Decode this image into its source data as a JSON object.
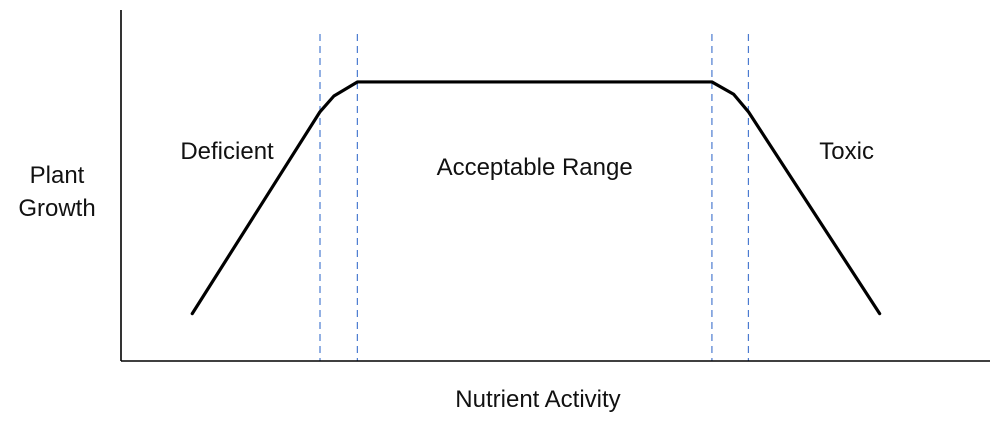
{
  "chart_data": {
    "type": "line",
    "title": "",
    "xlabel": "Nutrient Activity",
    "ylabel": [
      "Plant",
      "Growth"
    ],
    "xlim": [
      0,
      100
    ],
    "ylim": [
      0,
      100
    ],
    "grid": false,
    "axes": {
      "show_ticks": false,
      "show_tick_labels": false
    },
    "series": [
      {
        "points": [
          {
            "x": 8.2,
            "y": 13.5
          },
          {
            "x": 22.9,
            "y": 71.0
          },
          {
            "x": 24.5,
            "y": 75.5
          },
          {
            "x": 27.2,
            "y": 79.5
          },
          {
            "x": 68.0,
            "y": 79.5
          },
          {
            "x": 70.5,
            "y": 76.0
          },
          {
            "x": 72.2,
            "y": 71.0
          },
          {
            "x": 87.3,
            "y": 13.5
          }
        ],
        "color": "#000000"
      }
    ],
    "boundaries": [
      {
        "x": 22.9,
        "color": "#4a7bd0"
      },
      {
        "x": 27.2,
        "color": "#4a7bd0"
      },
      {
        "x": 68.0,
        "color": "#4a7bd0"
      },
      {
        "x": 72.2,
        "color": "#4a7bd0"
      }
    ],
    "annotations": [
      {
        "text": "Deficient",
        "x": 12.2,
        "y": 57.5
      },
      {
        "text": "Acceptable Range",
        "x": 47.6,
        "y": 53.0
      },
      {
        "text": "Toxic",
        "x": 83.5,
        "y": 57.5
      }
    ]
  }
}
